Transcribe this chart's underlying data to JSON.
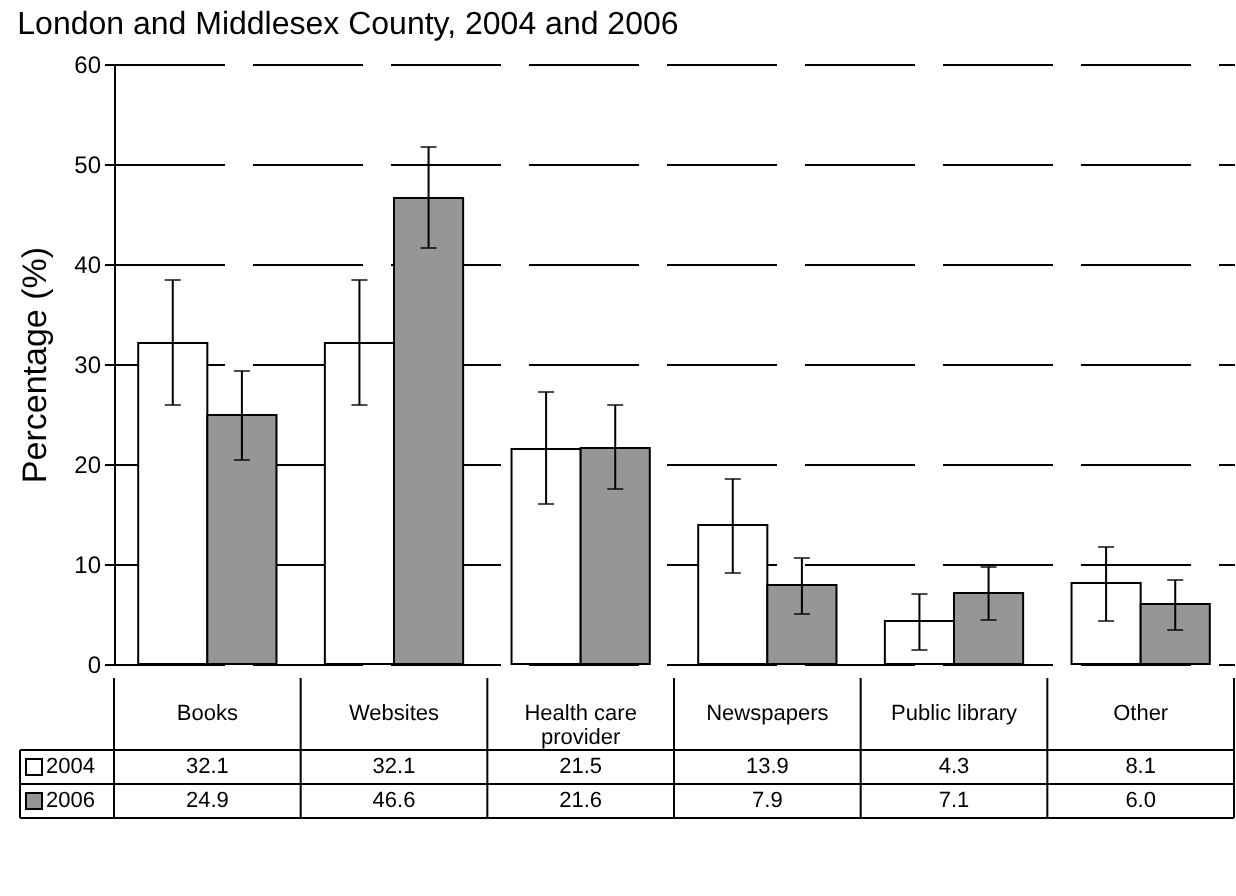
{
  "chart_data": {
    "type": "bar",
    "title": "London and Middlesex County, 2004 and 2006",
    "ylabel": "Percentage (%)",
    "categories": [
      "Books",
      "Websites",
      "Health care provider",
      "Newspapers",
      "Public library",
      "Other"
    ],
    "series": [
      {
        "name": "2004",
        "color": "#ffffff",
        "values": [
          32.1,
          32.1,
          21.5,
          13.9,
          4.3,
          8.1
        ],
        "value_labels": [
          "32.1",
          "32.1",
          "21.5",
          "13.9",
          "4.3",
          "8.1"
        ],
        "errors": [
          [
            25.9,
            38.4
          ],
          [
            25.9,
            38.4
          ],
          [
            16.0,
            27.2
          ],
          [
            9.1,
            18.5
          ],
          [
            1.4,
            7.0
          ],
          [
            4.3,
            11.7
          ]
        ]
      },
      {
        "name": "2006",
        "color": "#969696",
        "values": [
          24.9,
          46.6,
          21.6,
          7.9,
          7.1,
          6.0
        ],
        "value_labels": [
          "24.9",
          "46.6",
          "21.6",
          "7.9",
          "7.1",
          "6.0"
        ],
        "errors": [
          [
            20.4,
            29.3
          ],
          [
            41.6,
            51.7
          ],
          [
            17.5,
            25.9
          ],
          [
            5.0,
            10.6
          ],
          [
            4.4,
            9.7
          ],
          [
            3.4,
            8.4
          ]
        ]
      }
    ],
    "ylim": [
      0,
      60
    ],
    "yticks": [
      0,
      10,
      20,
      30,
      40,
      50,
      60
    ],
    "grid": "y",
    "legend": "bottom"
  }
}
